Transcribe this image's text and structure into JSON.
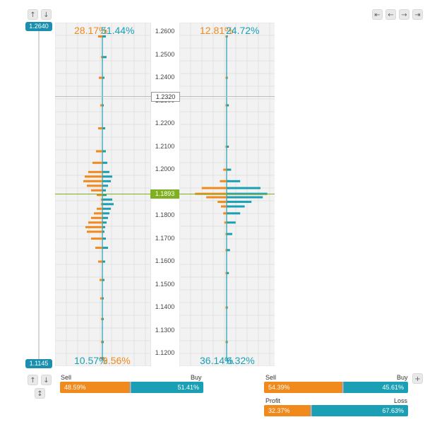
{
  "colors": {
    "sell": "#f08a1c",
    "buy": "#1a9fb5",
    "current": "#7fb020",
    "crosshair": "#a8a8a8"
  },
  "nav": {
    "top_left": [
      "arrow-up-icon",
      "arrow-down-icon"
    ],
    "top_right": [
      "arrow-left-end-icon",
      "arrow-left-icon",
      "arrow-right-icon",
      "arrow-right-end-icon"
    ],
    "bottom_left": [
      "arrow-up-icon",
      "arrow-down-icon",
      "vertical-resize-icon"
    ],
    "add": "plus-icon"
  },
  "range": {
    "high": "1.2640",
    "low": "1.1145"
  },
  "markers": {
    "crosshair": "1.2320",
    "current": "1.1893"
  },
  "orders_panel": {
    "top_sell": "28.17%",
    "top_buy": "51.44%",
    "bottom_sell": "10.57%",
    "bottom_buy": "9.56%"
  },
  "positions_panel": {
    "top_sell": "12.81%",
    "top_buy": "24.72%",
    "bottom_sell": "36.14%",
    "bottom_buy": "6.32%"
  },
  "summary": {
    "orders": {
      "sell_label": "Sell",
      "buy_label": "Buy",
      "sell": "48.59%",
      "buy": "51.41%",
      "sell_fraction": 0.4859
    },
    "positions": {
      "sell_label": "Sell",
      "buy_label": "Buy",
      "sell": "54.39%",
      "buy": "45.61%",
      "sell_fraction": 0.5439
    },
    "profit_loss": {
      "profit_label": "Profit",
      "loss_label": "Loss",
      "profit": "32.37%",
      "loss": "67.63%",
      "profit_fraction": 0.3237
    }
  },
  "chart_data": {
    "type": "bar",
    "orientation": "horizontal",
    "ylim": [
      1.1145,
      1.264
    ],
    "y_ticks": [
      "1.2600",
      "1.2500",
      "1.2400",
      "1.2300",
      "1.2200",
      "1.2100",
      "1.2000",
      "1.1900",
      "1.1800",
      "1.1700",
      "1.1600",
      "1.1500",
      "1.1400",
      "1.1300",
      "1.1200"
    ],
    "orders": {
      "series": [
        {
          "name": "Sell",
          "price": [
            1.258,
            1.249,
            1.24,
            1.228,
            1.218,
            1.208,
            1.203,
            1.199,
            1.197,
            1.195,
            1.193,
            1.191,
            1.189,
            1.187,
            1.185,
            1.183,
            1.181,
            1.179,
            1.177,
            1.175,
            1.173,
            1.17,
            1.166,
            1.16,
            1.152,
            1.144,
            1.135,
            1.125,
            1.118
          ],
          "values": [
            6,
            2,
            5,
            3,
            6,
            9,
            14,
            20,
            25,
            27,
            22,
            16,
            8,
            2,
            2,
            8,
            12,
            16,
            20,
            24,
            22,
            16,
            10,
            6,
            4,
            3,
            2,
            2,
            3
          ]
        },
        {
          "name": "Buy",
          "price": [
            1.258,
            1.249,
            1.24,
            1.228,
            1.218,
            1.208,
            1.203,
            1.199,
            1.197,
            1.195,
            1.193,
            1.191,
            1.189,
            1.187,
            1.185,
            1.183,
            1.181,
            1.179,
            1.177,
            1.175,
            1.173,
            1.17,
            1.166,
            1.16,
            1.152,
            1.144,
            1.135,
            1.125,
            1.118
          ],
          "values": [
            5,
            6,
            3,
            2,
            4,
            5,
            7,
            10,
            14,
            12,
            8,
            5,
            6,
            14,
            16,
            12,
            10,
            8,
            6,
            4,
            3,
            5,
            8,
            4,
            3,
            2,
            2,
            2,
            2
          ]
        }
      ]
    },
    "positions": {
      "series": [
        {
          "name": "Sell",
          "price": [
            1.258,
            1.24,
            1.228,
            1.21,
            1.2,
            1.195,
            1.192,
            1.1895,
            1.188,
            1.186,
            1.184,
            1.181,
            1.177,
            1.172,
            1.165,
            1.155,
            1.14,
            1.125
          ],
          "values": [
            1,
            1,
            1,
            1,
            3,
            6,
            22,
            28,
            18,
            8,
            5,
            3,
            2,
            1,
            1,
            1,
            1,
            1
          ]
        },
        {
          "name": "Buy",
          "price": [
            1.258,
            1.24,
            1.228,
            1.21,
            1.2,
            1.195,
            1.192,
            1.1895,
            1.188,
            1.186,
            1.184,
            1.181,
            1.177,
            1.172,
            1.165,
            1.155,
            1.14,
            1.125
          ],
          "values": [
            1,
            1,
            2,
            2,
            4,
            12,
            30,
            36,
            32,
            22,
            16,
            12,
            8,
            5,
            3,
            2,
            1,
            1
          ]
        }
      ]
    }
  }
}
